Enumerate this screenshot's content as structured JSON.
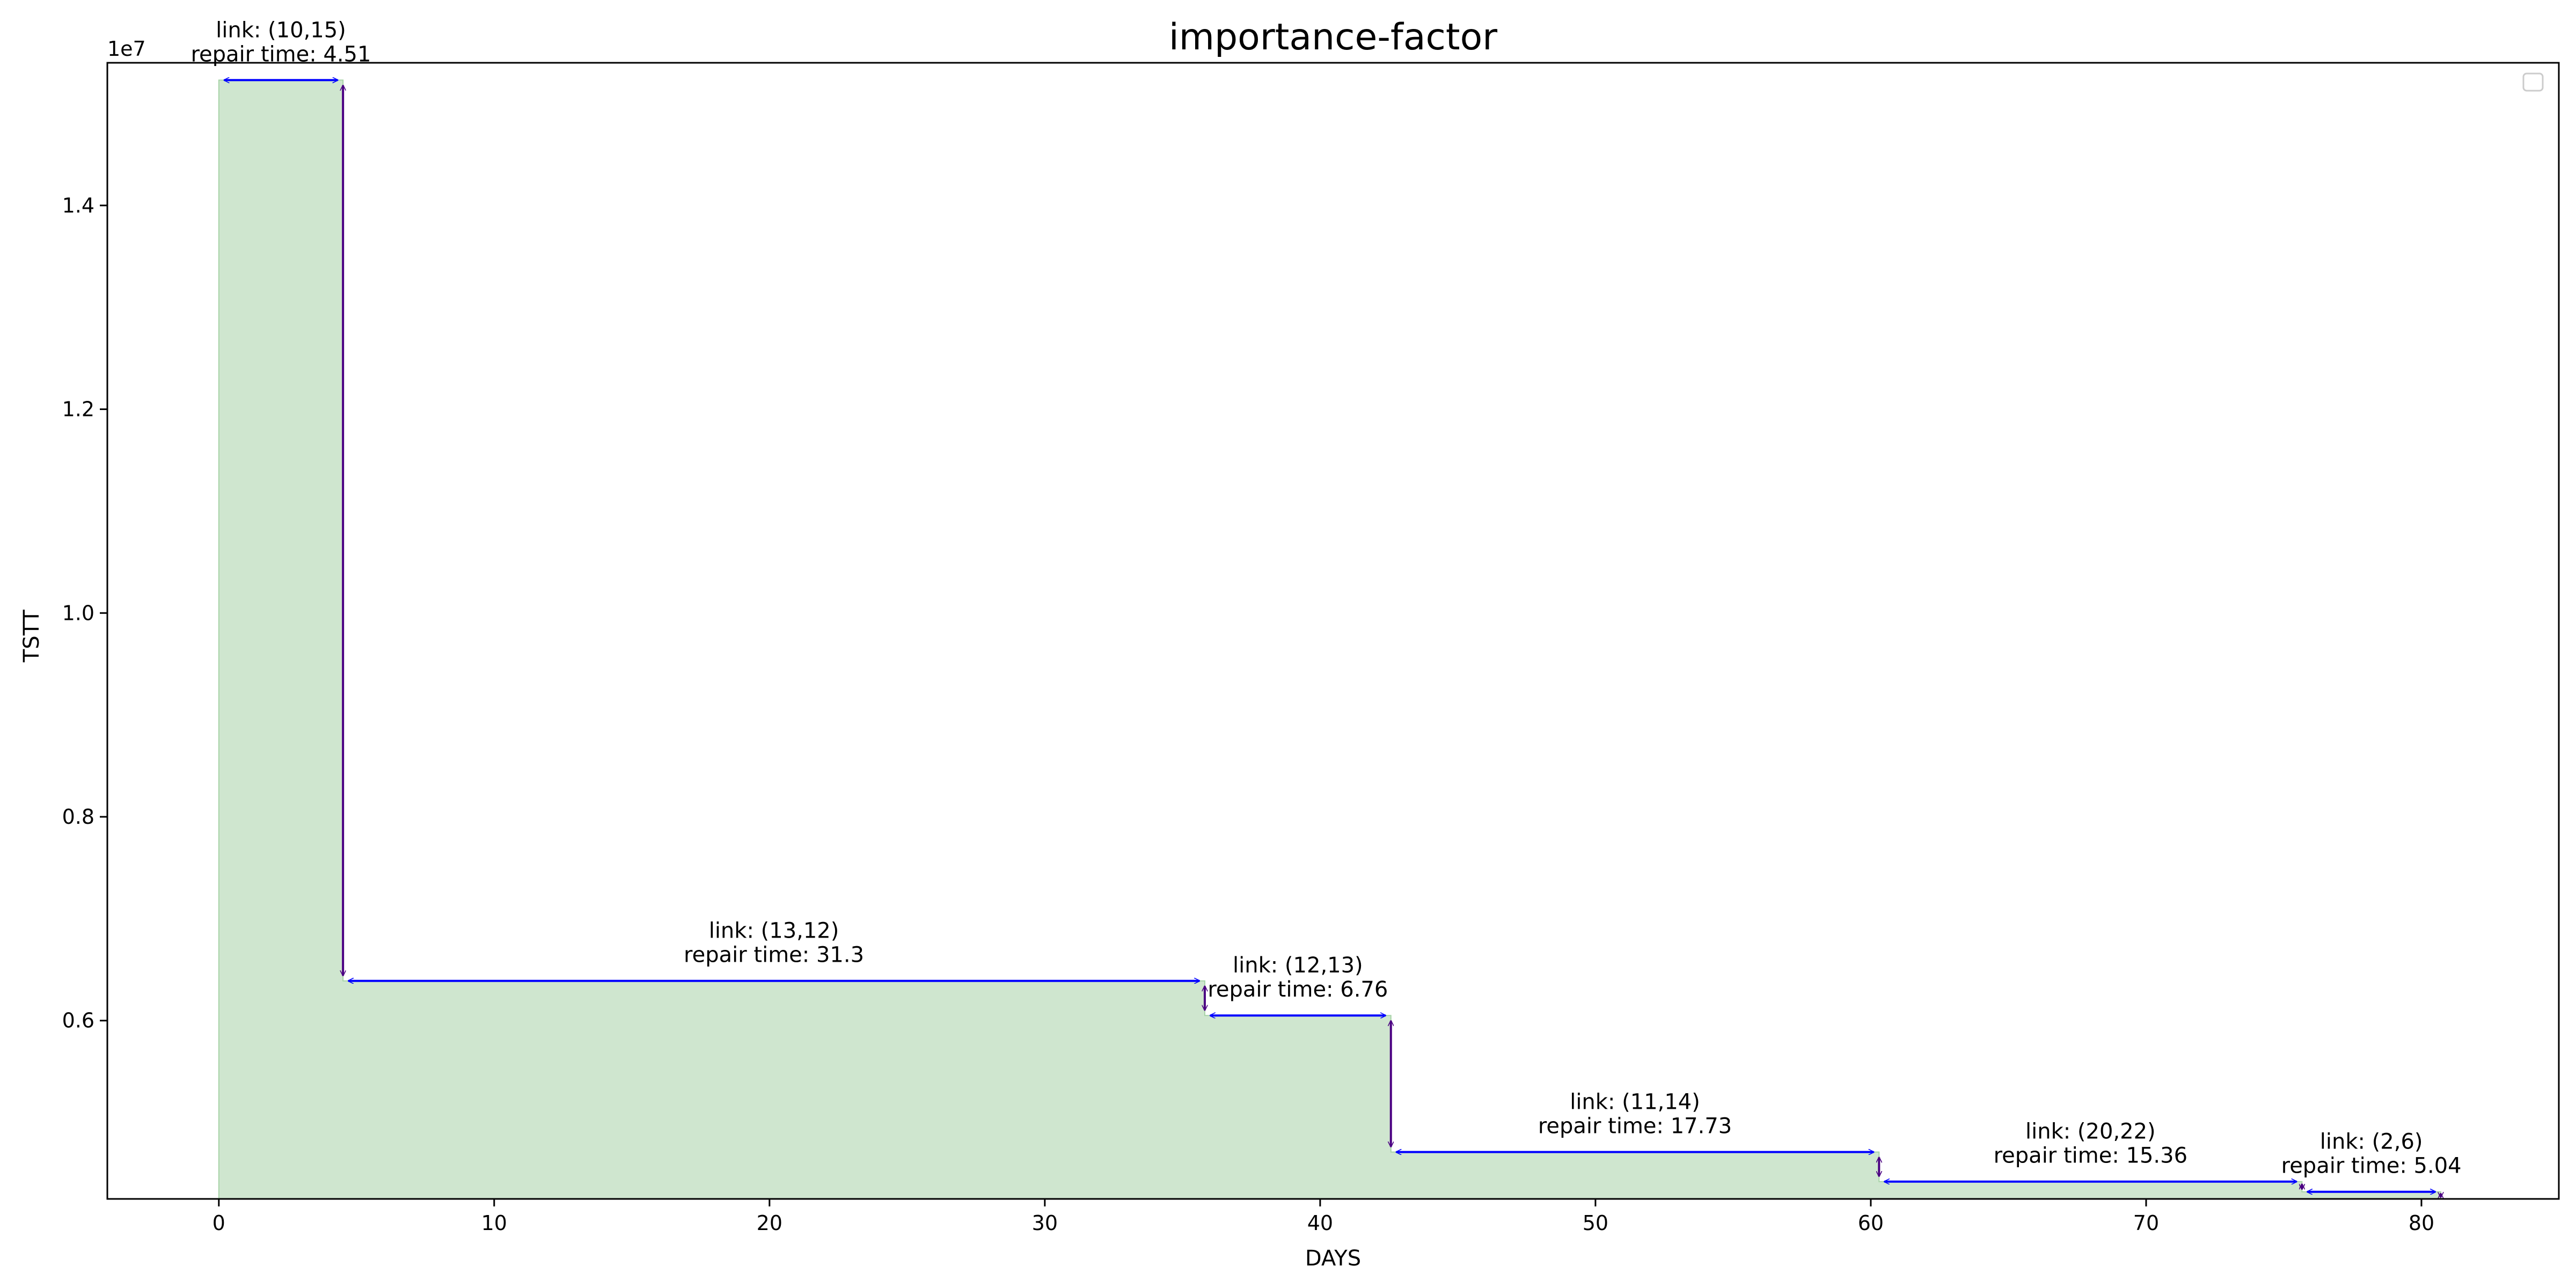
{
  "chart_data": {
    "type": "area",
    "title": "importance-factor",
    "xlabel": "DAYS",
    "ylabel": "TSTT",
    "y_offset_label": "1e7",
    "xlim": [
      -4.05,
      84.99
    ],
    "ylim": [
      4.25,
      15.4
    ],
    "y_scale_note": "values in units of 1e6 (axis shows 1e7)",
    "x_ticks": [
      0,
      10,
      20,
      30,
      40,
      50,
      60,
      70,
      80
    ],
    "y_ticks": [
      0.6,
      0.8,
      1.0,
      1.2,
      1.4
    ],
    "fill_color": "#cfe6cf",
    "fill_edge_color": "#a7d3a7",
    "arrow_h_color": "#0000ff",
    "arrow_v_color": "#4b0082",
    "legend": {
      "visible": true,
      "placement": "upper right",
      "entries": []
    },
    "grid": false,
    "steps": [
      {
        "x0": 0,
        "x1": 4.51,
        "y": 15.23,
        "link": "link: (10,15)",
        "repair": "repair time: 4.51"
      },
      {
        "x0": 4.51,
        "x1": 35.81,
        "y": 6.39,
        "link": "link: (13,12)",
        "repair": "repair time: 31.3"
      },
      {
        "x0": 35.81,
        "x1": 42.57,
        "y": 6.05,
        "link": "link: (12,13)",
        "repair": "repair time: 6.76"
      },
      {
        "x0": 42.57,
        "x1": 60.3,
        "y": 4.71,
        "link": "link: (11,14)",
        "repair": "repair time: 17.73"
      },
      {
        "x0": 60.3,
        "x1": 75.66,
        "y": 4.42,
        "link": "link: (20,22)",
        "repair": "repair time: 15.36"
      },
      {
        "x0": 75.66,
        "x1": 80.7,
        "y": 4.32,
        "link": "link: (2,6)",
        "repair": "repair time: 5.04"
      }
    ],
    "final_y": 4.25
  }
}
